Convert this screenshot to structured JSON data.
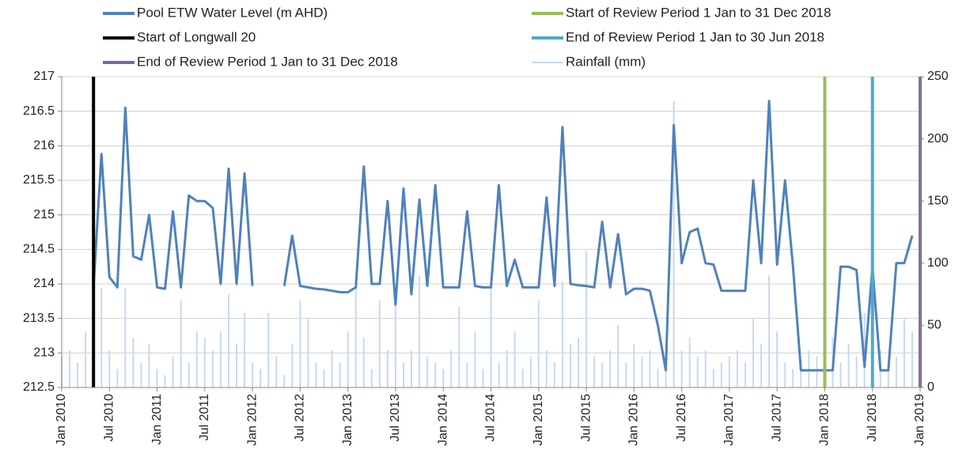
{
  "chart_data": {
    "type": "line",
    "x": [
      "2010-01",
      "2010-02",
      "2010-03",
      "2010-04",
      "2010-05",
      "2010-06",
      "2010-07",
      "2010-08",
      "2010-09",
      "2010-10",
      "2010-11",
      "2010-12",
      "2011-01",
      "2011-02",
      "2011-03",
      "2011-04",
      "2011-05",
      "2011-06",
      "2011-07",
      "2011-08",
      "2011-09",
      "2011-10",
      "2011-11",
      "2011-12",
      "2012-01",
      "2012-02",
      "2012-03",
      "2012-04",
      "2012-05",
      "2012-06",
      "2012-07",
      "2012-08",
      "2012-09",
      "2012-10",
      "2012-11",
      "2012-12",
      "2013-01",
      "2013-02",
      "2013-03",
      "2013-04",
      "2013-05",
      "2013-06",
      "2013-07",
      "2013-08",
      "2013-09",
      "2013-10",
      "2013-11",
      "2013-12",
      "2014-01",
      "2014-02",
      "2014-03",
      "2014-04",
      "2014-05",
      "2014-06",
      "2014-07",
      "2014-08",
      "2014-09",
      "2014-10",
      "2014-11",
      "2014-12",
      "2015-01",
      "2015-02",
      "2015-03",
      "2015-04",
      "2015-05",
      "2015-06",
      "2015-07",
      "2015-08",
      "2015-09",
      "2015-10",
      "2015-11",
      "2015-12",
      "2016-01",
      "2016-02",
      "2016-03",
      "2016-04",
      "2016-05",
      "2016-06",
      "2016-07",
      "2016-08",
      "2016-09",
      "2016-10",
      "2016-11",
      "2016-12",
      "2017-01",
      "2017-02",
      "2017-03",
      "2017-04",
      "2017-05",
      "2017-06",
      "2017-07",
      "2017-08",
      "2017-09",
      "2017-10",
      "2017-11",
      "2017-12",
      "2018-01",
      "2018-02",
      "2018-03",
      "2018-04",
      "2018-05",
      "2018-06",
      "2018-07",
      "2018-08",
      "2018-09",
      "2018-10",
      "2018-11",
      "2018-12"
    ],
    "series": [
      {
        "name": "Pool ETW Water Level (m AHD)",
        "color": "#4f81bd",
        "values": [
          null,
          null,
          null,
          null,
          213.95,
          215.88,
          214.1,
          213.95,
          216.55,
          214.4,
          214.35,
          215.0,
          213.95,
          213.93,
          215.05,
          213.95,
          215.28,
          215.2,
          215.2,
          215.1,
          214.0,
          215.67,
          214.0,
          215.6,
          213.97,
          null,
          null,
          null,
          213.97,
          214.7,
          213.97,
          213.95,
          213.93,
          213.92,
          213.9,
          213.88,
          213.88,
          213.95,
          215.7,
          214.0,
          214.0,
          215.2,
          213.7,
          215.38,
          213.85,
          215.22,
          213.97,
          215.43,
          213.95,
          213.95,
          213.95,
          215.05,
          213.97,
          213.95,
          213.95,
          215.43,
          213.97,
          214.35,
          213.95,
          213.95,
          213.95,
          215.25,
          213.97,
          216.27,
          214.0,
          213.98,
          213.97,
          213.95,
          214.9,
          213.95,
          214.72,
          213.85,
          213.93,
          213.93,
          213.9,
          213.4,
          212.75,
          216.3,
          214.3,
          214.75,
          214.8,
          214.3,
          214.28,
          213.9,
          213.9,
          213.9,
          213.9,
          215.5,
          214.3,
          216.65,
          214.28,
          215.5,
          214.25,
          212.75,
          212.75,
          212.75,
          212.75,
          212.75,
          214.25,
          214.25,
          214.2,
          212.8,
          214.25,
          212.75,
          212.75,
          214.3,
          214.3,
          214.7
        ]
      },
      {
        "name": "Rainfall (mm)",
        "color": "#c6d9f1",
        "axis": "y2",
        "values": [
          25,
          30,
          20,
          45,
          15,
          80,
          30,
          15,
          80,
          40,
          20,
          35,
          15,
          10,
          25,
          70,
          20,
          45,
          40,
          30,
          45,
          75,
          35,
          60,
          20,
          15,
          60,
          25,
          10,
          35,
          70,
          55,
          20,
          15,
          30,
          20,
          45,
          85,
          40,
          15,
          70,
          30,
          80,
          20,
          30,
          90,
          25,
          20,
          15,
          30,
          65,
          20,
          45,
          15,
          80,
          20,
          30,
          45,
          15,
          25,
          70,
          30,
          20,
          85,
          35,
          40,
          110,
          25,
          20,
          30,
          50,
          20,
          35,
          25,
          30,
          15,
          20,
          230,
          30,
          40,
          25,
          30,
          15,
          20,
          25,
          30,
          20,
          55,
          35,
          90,
          45,
          20,
          15,
          15,
          30,
          25,
          30,
          40,
          20,
          35,
          25,
          60,
          15,
          30,
          20,
          25,
          55,
          45
        ]
      }
    ],
    "events": [
      {
        "name": "Start of Longwall 20",
        "color": "#000000",
        "x": "2010-05"
      },
      {
        "name": "Start of Review Period 1 Jan to 31 Dec 2018",
        "color": "#9bbb59",
        "x": "2018-01"
      },
      {
        "name": "End of Review Period 1 Jan to 30 Jun 2018",
        "color": "#4bacc6",
        "x": "2018-07"
      },
      {
        "name": "End of Review Period 1 Jan to 31 Dec 2018",
        "color": "#8064a2",
        "x": "2019-01"
      }
    ],
    "xlim": [
      "2010-01",
      "2019-01"
    ],
    "xticks": [
      {
        "value": "2010-01",
        "label": "Jan 2010"
      },
      {
        "value": "2010-07",
        "label": "Jul 2010"
      },
      {
        "value": "2011-01",
        "label": "Jan 2011"
      },
      {
        "value": "2011-07",
        "label": "Jul 2011"
      },
      {
        "value": "2012-01",
        "label": "Jan 2012"
      },
      {
        "value": "2012-07",
        "label": "Jul 2012"
      },
      {
        "value": "2013-01",
        "label": "Jan 2013"
      },
      {
        "value": "2013-07",
        "label": "Jul 2013"
      },
      {
        "value": "2014-01",
        "label": "Jan 2014"
      },
      {
        "value": "2014-07",
        "label": "Jul 2014"
      },
      {
        "value": "2015-01",
        "label": "Jan 2015"
      },
      {
        "value": "2015-07",
        "label": "Jul 2015"
      },
      {
        "value": "2016-01",
        "label": "Jan 2016"
      },
      {
        "value": "2016-07",
        "label": "Jul 2016"
      },
      {
        "value": "2017-01",
        "label": "Jan 2017"
      },
      {
        "value": "2017-07",
        "label": "Jul 2017"
      },
      {
        "value": "2018-01",
        "label": "Jan 2018"
      },
      {
        "value": "2018-07",
        "label": "Jul 2018"
      },
      {
        "value": "2019-01",
        "label": "Jan 2019"
      }
    ],
    "ylim": [
      212.5,
      217
    ],
    "yticks": [
      212.5,
      213,
      213.5,
      214,
      214.5,
      215,
      215.5,
      216,
      216.5,
      217
    ],
    "y2lim": [
      0,
      250
    ],
    "y2ticks": [
      0,
      50,
      100,
      150,
      200,
      250
    ],
    "grid": true
  }
}
